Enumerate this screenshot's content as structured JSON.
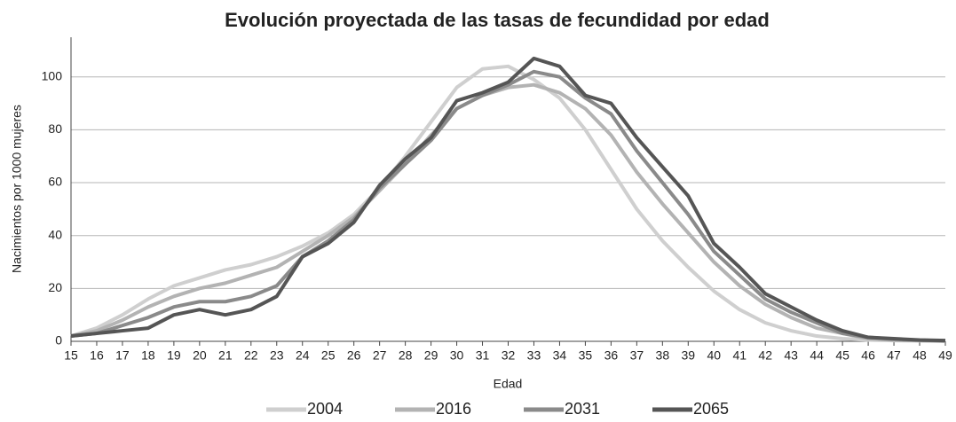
{
  "chart_data": {
    "type": "line",
    "title": "Evolución proyectada de las tasas de fecundidad por edad",
    "xlabel": "Edad",
    "ylabel": "Nacimientos por 1000 mujeres",
    "x": [
      15,
      16,
      17,
      18,
      19,
      20,
      21,
      22,
      23,
      24,
      25,
      26,
      27,
      28,
      29,
      30,
      31,
      32,
      33,
      34,
      35,
      36,
      37,
      38,
      39,
      40,
      41,
      42,
      43,
      44,
      45,
      46,
      47,
      48,
      49
    ],
    "xlim": [
      15,
      49
    ],
    "xticks": [
      15,
      16,
      17,
      18,
      19,
      20,
      21,
      22,
      23,
      24,
      25,
      26,
      27,
      28,
      29,
      30,
      31,
      32,
      33,
      34,
      35,
      36,
      37,
      38,
      39,
      40,
      41,
      42,
      43,
      44,
      45,
      46,
      47,
      48,
      49
    ],
    "ylim": [
      0,
      115
    ],
    "yticks": [
      0,
      20,
      40,
      60,
      80,
      100
    ],
    "grid": true,
    "legend": "bottom",
    "series": [
      {
        "name": "2004",
        "color": "#cfcfcf",
        "values": [
          2,
          5,
          10,
          16,
          21,
          24,
          27,
          29,
          32,
          36,
          41,
          48,
          58,
          70,
          83,
          96,
          103,
          104,
          99,
          92,
          80,
          65,
          50,
          38,
          28,
          19,
          12,
          7,
          4,
          2,
          1,
          0.5,
          0.3,
          0.2,
          0.1
        ]
      },
      {
        "name": "2016",
        "color": "#b3b3b3",
        "values": [
          2,
          4,
          8,
          13,
          17,
          20,
          22,
          25,
          28,
          34,
          40,
          47,
          57,
          67,
          78,
          88,
          93,
          96,
          97,
          94,
          88,
          78,
          64,
          52,
          41,
          30,
          21,
          14,
          9,
          5,
          3,
          1,
          0.5,
          0.3,
          0.1
        ]
      },
      {
        "name": "2031",
        "color": "#8a8a8a",
        "values": [
          2,
          3,
          6,
          9,
          13,
          15,
          15,
          17,
          21,
          32,
          38,
          46,
          58,
          67,
          76,
          88,
          93,
          97,
          102,
          100,
          92,
          86,
          72,
          60,
          48,
          34,
          25,
          16,
          11,
          7,
          3,
          1.5,
          0.8,
          0.4,
          0.2
        ]
      },
      {
        "name": "2065",
        "color": "#555555",
        "values": [
          2,
          3,
          4,
          5,
          10,
          12,
          10,
          12,
          17,
          32,
          37,
          45,
          59,
          69,
          77,
          91,
          94,
          98,
          107,
          104,
          93,
          90,
          77,
          66,
          55,
          37,
          28,
          18,
          13,
          8,
          4,
          1.5,
          1,
          0.5,
          0.3
        ]
      }
    ]
  }
}
